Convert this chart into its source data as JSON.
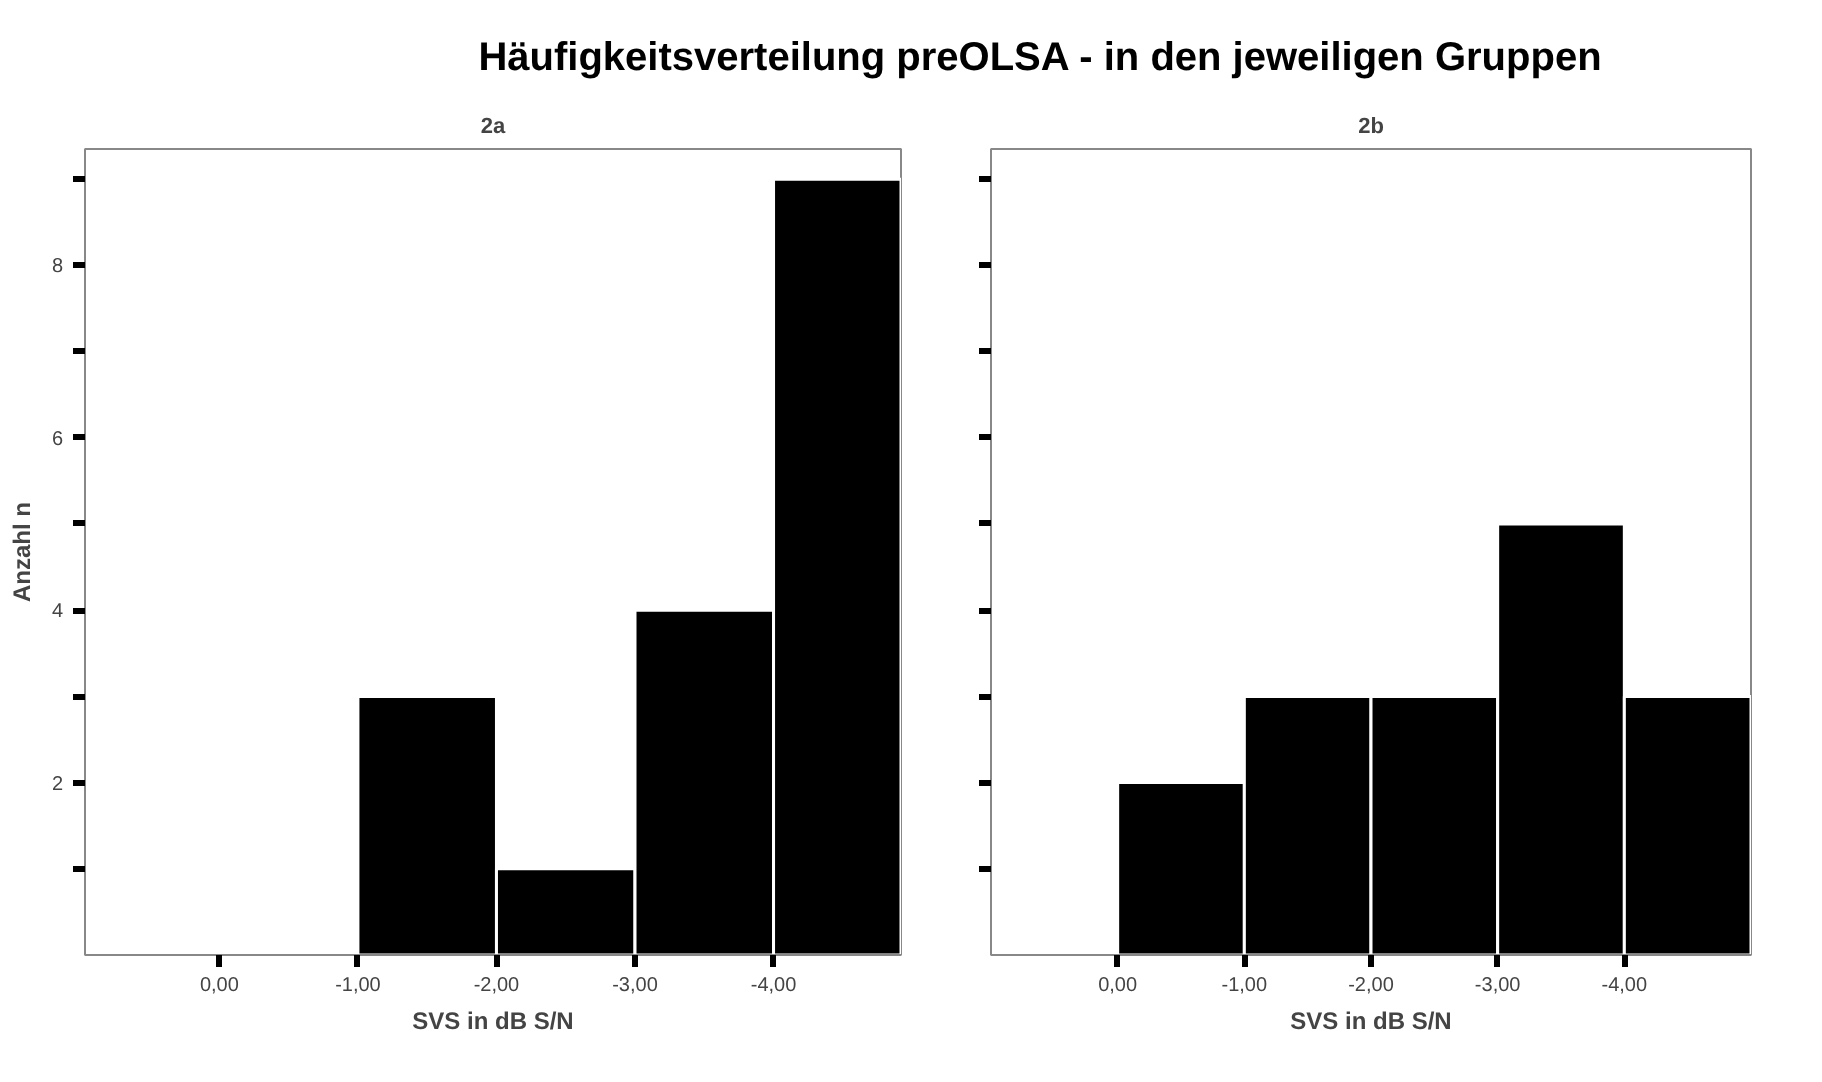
{
  "chart_data": [
    {
      "type": "histogram",
      "title": "Häufigkeitsverteilung preOLSA - in den jeweiligen Gruppen",
      "subtitle": "2a",
      "xlabel": "SVS in dB S/N",
      "ylabel": "Anzahl n",
      "bins": [
        -1,
        -2,
        -3,
        -4,
        -4.92
      ],
      "values": [
        3,
        1,
        4,
        9
      ],
      "color": "#000000",
      "xlim": [
        0.97,
        -4.92
      ],
      "xticks": [
        {
          "value": 0,
          "label": "0,00"
        },
        {
          "value": -1,
          "label": "-1,00"
        },
        {
          "value": -2,
          "label": "-2,00"
        },
        {
          "value": -3,
          "label": "-3,00"
        },
        {
          "value": -4,
          "label": "-4,00"
        }
      ],
      "ylim": [
        0,
        9.35
      ],
      "yticks": [
        {
          "value": 1,
          "label": null
        },
        2,
        {
          "value": 3,
          "label": null
        },
        4,
        {
          "value": 5,
          "label": null
        },
        6,
        {
          "value": 7,
          "label": null
        },
        8,
        {
          "value": 9,
          "label": null
        }
      ],
      "grid": false
    },
    {
      "type": "histogram",
      "subtitle": "2b",
      "xlabel": "SVS in dB S/N",
      "bins": [
        0,
        -1,
        -2,
        -3,
        -4,
        -5
      ],
      "values": [
        2,
        3,
        3,
        5,
        3
      ],
      "color": "#000000",
      "xlim": [
        1.0,
        -5.0
      ],
      "xticks": [
        {
          "value": 0,
          "label": "0,00"
        },
        {
          "value": -1,
          "label": "-1,00"
        },
        {
          "value": -2,
          "label": "-2,00"
        },
        {
          "value": -3,
          "label": "-3,00"
        },
        {
          "value": -4,
          "label": "-4,00"
        }
      ],
      "ylim": [
        0,
        9.35
      ],
      "yticks": [
        {
          "value": 1,
          "label": null
        },
        2,
        {
          "value": 3,
          "label": null
        },
        4,
        {
          "value": 5,
          "label": null
        },
        6,
        {
          "value": 7,
          "label": null
        },
        8,
        {
          "value": 9,
          "label": null
        }
      ],
      "grid": false,
      "tick_labels": "x"
    }
  ]
}
